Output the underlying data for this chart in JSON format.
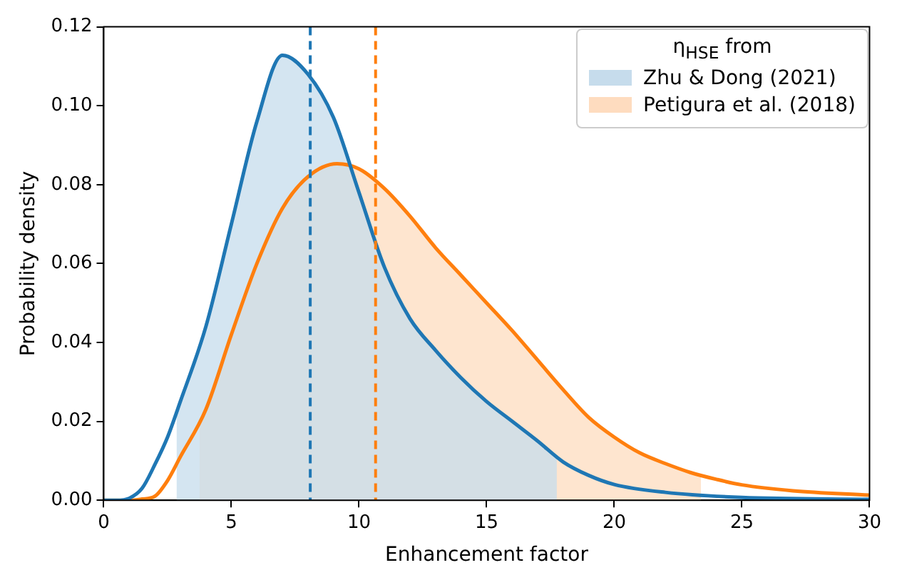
{
  "chart_data": {
    "type": "line",
    "xlabel": "Enhancement factor",
    "ylabel": "Probability density",
    "legend_title": "η$_{HSE}$ from",
    "legend": "top right",
    "grid": false,
    "xlim": [
      0,
      30
    ],
    "xticks": [
      0,
      5,
      10,
      15,
      20,
      25,
      30
    ],
    "ylim": [
      0,
      0.12
    ],
    "yticks": [
      {
        "value": 0,
        "label": "0.00"
      },
      0.02,
      0.04,
      0.06,
      0.08,
      {
        "value": 0.1,
        "label": "0.10"
      },
      0.12
    ],
    "series": [
      {
        "type": "area",
        "name": "Zhu & Dong (2021)",
        "color": "#c6dcec",
        "x": [
          2.85,
          3,
          4,
          5,
          6,
          7,
          8,
          9,
          10,
          11,
          12,
          13,
          14,
          15,
          16,
          17,
          17.75
        ],
        "values": [
          0.022,
          0.025,
          0.044,
          0.07,
          0.096,
          0.1128,
          0.108,
          0.097,
          0.078,
          0.059,
          0.046,
          0.038,
          0.031,
          0.025,
          0.02,
          0.015,
          0.011
        ]
      },
      {
        "type": "area",
        "name": "Petigura et al. (2018)",
        "color": "#fedcbf",
        "x": [
          3.75,
          4,
          5,
          6,
          7,
          8,
          9.14,
          10,
          11,
          12,
          13,
          14,
          15,
          16,
          17,
          18,
          19,
          20,
          21,
          22,
          23,
          23.4
        ],
        "values": [
          0.02,
          0.023,
          0.042,
          0.06,
          0.074,
          0.082,
          0.0853,
          0.084,
          0.079,
          0.072,
          0.064,
          0.057,
          0.05,
          0.043,
          0.0355,
          0.028,
          0.021,
          0.016,
          0.012,
          0.0093,
          0.007,
          0.0063
        ]
      },
      {
        "type": "line",
        "color": "#1f77b4",
        "x": [
          0,
          0.5,
          1,
          1.5,
          2,
          2.5,
          3,
          4,
          5,
          6,
          7,
          8,
          9,
          10,
          11,
          12,
          13,
          14,
          15,
          16,
          17,
          18,
          19,
          20,
          22,
          25,
          30
        ],
        "values": [
          0,
          0,
          0.0005,
          0.003,
          0.009,
          0.016,
          0.025,
          0.044,
          0.07,
          0.096,
          0.1128,
          0.108,
          0.097,
          0.078,
          0.059,
          0.046,
          0.038,
          0.031,
          0.025,
          0.02,
          0.015,
          0.0097,
          0.0063,
          0.004,
          0.002,
          0.0007,
          0.0002
        ]
      },
      {
        "type": "line",
        "color": "#ff7f0e",
        "x": [
          0,
          1,
          1.5,
          2,
          2.5,
          3,
          4,
          5,
          6,
          7,
          8,
          9.14,
          10,
          11,
          12,
          13,
          14,
          15,
          16,
          17,
          18,
          19,
          20,
          21,
          22,
          23,
          24,
          25,
          27,
          30
        ],
        "values": [
          0,
          0,
          0.0003,
          0.001,
          0.005,
          0.011,
          0.023,
          0.042,
          0.06,
          0.074,
          0.082,
          0.0853,
          0.084,
          0.079,
          0.072,
          0.064,
          0.057,
          0.05,
          0.043,
          0.0355,
          0.028,
          0.021,
          0.016,
          0.012,
          0.0093,
          0.007,
          0.0053,
          0.0039,
          0.0024,
          0.0013
        ]
      }
    ],
    "ref_lines": [
      {
        "axis": "x",
        "value": 8.09,
        "color": "#1f77b4",
        "line_style": "dashed"
      },
      {
        "axis": "x",
        "value": 10.65,
        "color": "#ff7f0e",
        "line_style": "dashed"
      }
    ]
  }
}
